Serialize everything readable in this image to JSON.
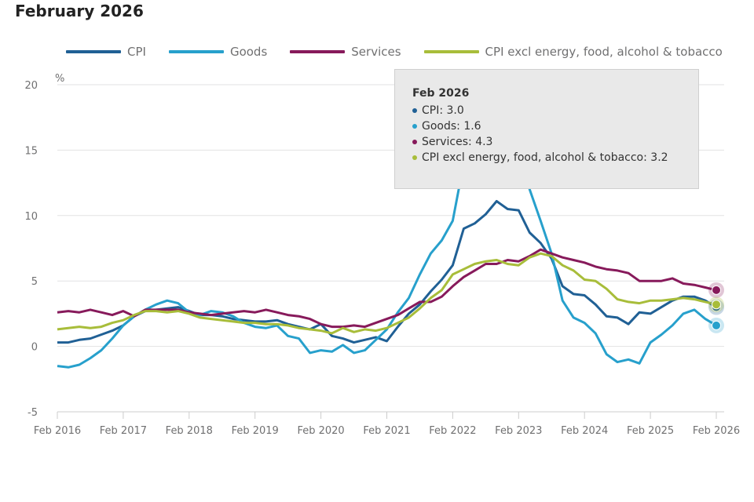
{
  "title": "February 2026",
  "chart_data": {
    "type": "line",
    "title": "February 2026",
    "ylabel": "%",
    "xlabel": "",
    "ylim": [
      -5,
      20
    ],
    "yticks": [
      -5,
      0,
      5,
      10,
      15,
      20
    ],
    "xticks": [
      "Feb 2016",
      "Feb 2017",
      "Feb 2018",
      "Feb 2019",
      "Feb 2020",
      "Feb 2021",
      "Feb 2022",
      "Feb 2023",
      "Feb 2024",
      "Feb 2025",
      "Feb 2026"
    ],
    "x_start": "Feb 2016",
    "x_step_months": 2,
    "grid": true,
    "legend_position": "top",
    "series": [
      {
        "name": "CPI",
        "color": "#206095",
        "values": [
          0.3,
          0.3,
          0.5,
          0.6,
          0.9,
          1.2,
          1.6,
          2.3,
          2.7,
          2.8,
          2.9,
          3.0,
          2.7,
          2.4,
          2.4,
          2.3,
          2.1,
          2.0,
          1.9,
          1.9,
          2.0,
          1.7,
          1.5,
          1.3,
          1.7,
          0.8,
          0.6,
          0.3,
          0.5,
          0.7,
          0.4,
          1.5,
          2.5,
          3.2,
          4.2,
          5.1,
          6.2,
          9.0,
          9.4,
          10.1,
          11.1,
          10.5,
          10.4,
          8.7,
          7.9,
          6.7,
          4.6,
          4.0,
          3.9,
          3.2,
          2.3,
          2.2,
          1.7,
          2.6,
          2.5,
          3.0,
          3.5,
          3.8,
          3.8,
          3.5,
          3.0
        ]
      },
      {
        "name": "Goods",
        "color": "#27a0cc",
        "values": [
          -1.5,
          -1.6,
          -1.4,
          -0.9,
          -0.3,
          0.6,
          1.6,
          2.3,
          2.8,
          3.2,
          3.5,
          3.3,
          2.6,
          2.4,
          2.7,
          2.6,
          2.3,
          1.8,
          1.5,
          1.4,
          1.6,
          0.8,
          0.6,
          -0.5,
          -0.3,
          -0.4,
          0.1,
          -0.5,
          -0.3,
          0.5,
          1.3,
          2.6,
          3.7,
          5.5,
          7.1,
          8.1,
          9.6,
          14.0,
          19.0,
          20.5,
          20.8,
          20.6,
          18.0,
          12.0,
          9.6,
          7.1,
          3.5,
          2.2,
          1.8,
          1.0,
          -0.6,
          -1.2,
          -1.0,
          -1.3,
          0.3,
          0.9,
          1.6,
          2.5,
          2.8,
          2.1,
          1.6
        ]
      },
      {
        "name": "Services",
        "color": "#871a5b",
        "values": [
          2.6,
          2.7,
          2.6,
          2.8,
          2.6,
          2.4,
          2.7,
          2.3,
          2.8,
          2.8,
          2.8,
          2.8,
          2.6,
          2.5,
          2.4,
          2.5,
          2.6,
          2.7,
          2.6,
          2.8,
          2.6,
          2.4,
          2.3,
          2.1,
          1.7,
          1.5,
          1.5,
          1.6,
          1.5,
          1.8,
          2.1,
          2.4,
          2.9,
          3.4,
          3.4,
          3.8,
          4.6,
          5.3,
          5.8,
          6.3,
          6.3,
          6.6,
          6.5,
          6.9,
          7.4,
          7.1,
          6.8,
          6.6,
          6.4,
          6.1,
          5.9,
          5.8,
          5.6,
          5.0,
          5.0,
          5.0,
          5.2,
          4.8,
          4.7,
          4.5,
          4.3
        ]
      },
      {
        "name": "CPI excl energy, food, alcohol & tobacco",
        "color": "#a8bd3a",
        "values": [
          1.3,
          1.4,
          1.5,
          1.4,
          1.5,
          1.8,
          2.0,
          2.4,
          2.7,
          2.7,
          2.6,
          2.7,
          2.5,
          2.2,
          2.1,
          2.0,
          1.9,
          1.8,
          1.8,
          1.7,
          1.7,
          1.6,
          1.4,
          1.3,
          1.2,
          1.0,
          1.4,
          1.1,
          1.3,
          1.2,
          1.4,
          1.8,
          2.2,
          2.9,
          3.7,
          4.3,
          5.5,
          5.9,
          6.3,
          6.5,
          6.6,
          6.3,
          6.2,
          6.8,
          7.1,
          6.9,
          6.2,
          5.8,
          5.1,
          5.0,
          4.4,
          3.6,
          3.4,
          3.3,
          3.5,
          3.5,
          3.6,
          3.7,
          3.6,
          3.4,
          3.2
        ]
      }
    ],
    "highlight": {
      "label": "Feb 2026",
      "points": [
        {
          "series": "CPI",
          "value": 3.0
        },
        {
          "series": "Goods",
          "value": 1.6
        },
        {
          "series": "Services",
          "value": 4.3
        },
        {
          "series": "CPI excl energy, food, alcohol & tobacco",
          "value": 3.2
        }
      ]
    }
  },
  "tooltip": {
    "title": "Feb 2026",
    "rows": [
      {
        "text": "CPI: 3.0",
        "color": "#206095"
      },
      {
        "text": "Goods: 1.6",
        "color": "#27a0cc"
      },
      {
        "text": "Services: 4.3",
        "color": "#871a5b"
      },
      {
        "text": "CPI excl energy, food, alcohol & tobacco: 3.2",
        "color": "#a8bd3a"
      }
    ]
  }
}
